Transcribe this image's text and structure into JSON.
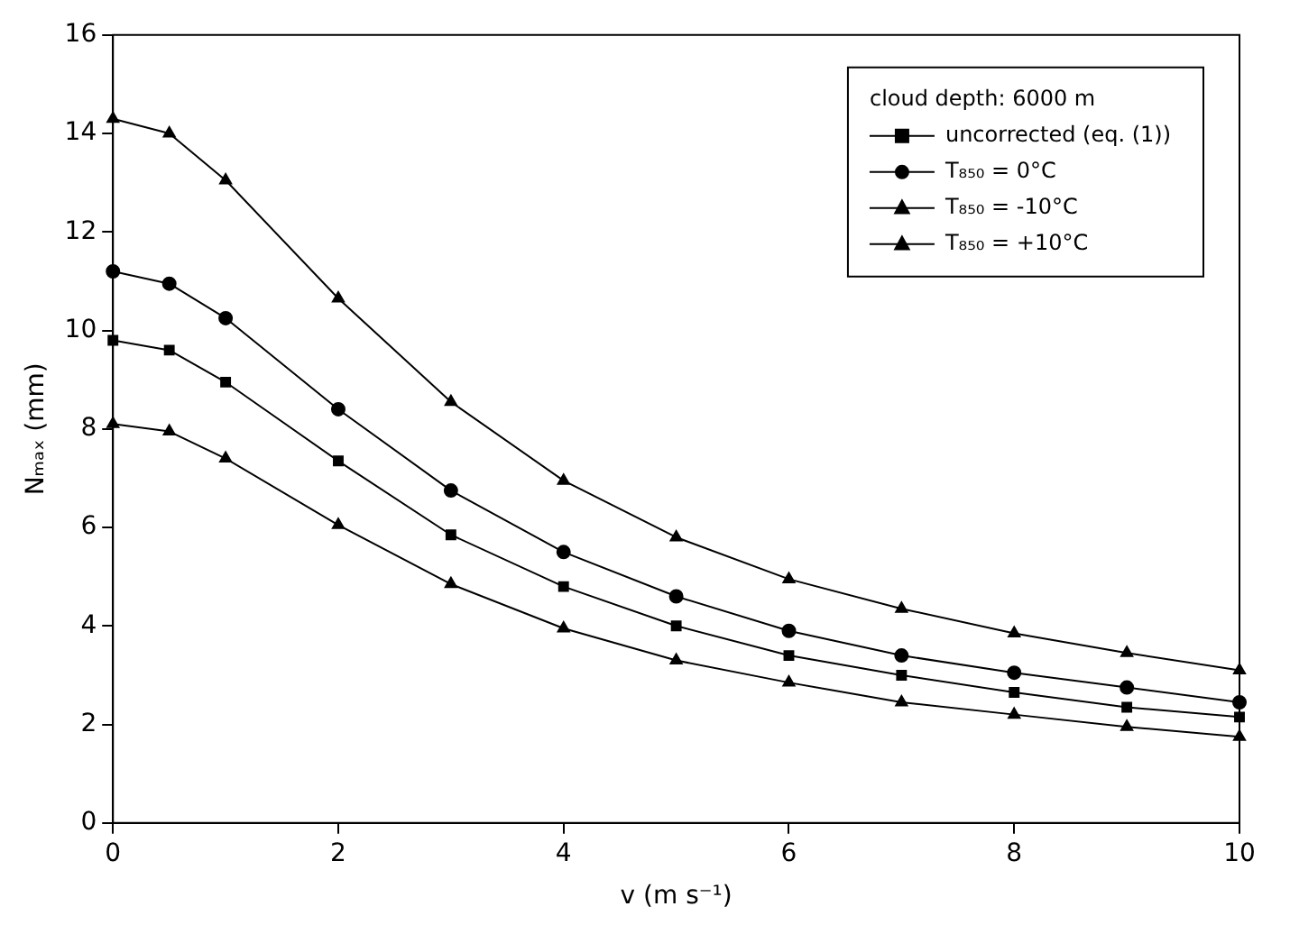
{
  "chart_data": {
    "type": "line",
    "xlabel": "v (m s⁻¹)",
    "ylabel": "Nₘₐₓ (mm)",
    "legend_title": "cloud depth: 6000 m",
    "legend": "top right",
    "grid": false,
    "line_style": "solid",
    "x": [
      0,
      0.5,
      1,
      2,
      3,
      4,
      5,
      6,
      7,
      8,
      9,
      10
    ],
    "xlim": [
      0,
      10
    ],
    "xticks": [
      0,
      2,
      4,
      6,
      8,
      10
    ],
    "ylim": [
      0,
      16
    ],
    "yticks": [
      0,
      2,
      4,
      6,
      8,
      10,
      12,
      14,
      16
    ],
    "series": [
      {
        "name": "uncorrected (eq. (1))",
        "color": "#000000",
        "marker": "square",
        "values": [
          9.8,
          9.6,
          8.95,
          7.35,
          5.85,
          4.8,
          4.0,
          3.4,
          3.0,
          2.65,
          2.35,
          2.15
        ]
      },
      {
        "name": "T₈₅₀ = 0°C",
        "color": "#000000",
        "marker": "circle",
        "values": [
          11.2,
          10.95,
          10.25,
          8.4,
          6.75,
          5.5,
          4.6,
          3.9,
          3.4,
          3.05,
          2.75,
          2.45
        ]
      },
      {
        "name": "T₈₅₀ = -10°C",
        "color": "#000000",
        "marker": "triangle",
        "values": [
          8.1,
          7.95,
          7.4,
          6.05,
          4.85,
          3.95,
          3.3,
          2.85,
          2.45,
          2.2,
          1.95,
          1.75
        ]
      },
      {
        "name": "T₈₅₀ = +10°C",
        "color": "#000000",
        "marker": "triangle",
        "values": [
          14.3,
          14.0,
          13.05,
          10.65,
          8.55,
          6.95,
          5.8,
          4.95,
          4.35,
          3.85,
          3.45,
          3.1
        ]
      }
    ]
  }
}
